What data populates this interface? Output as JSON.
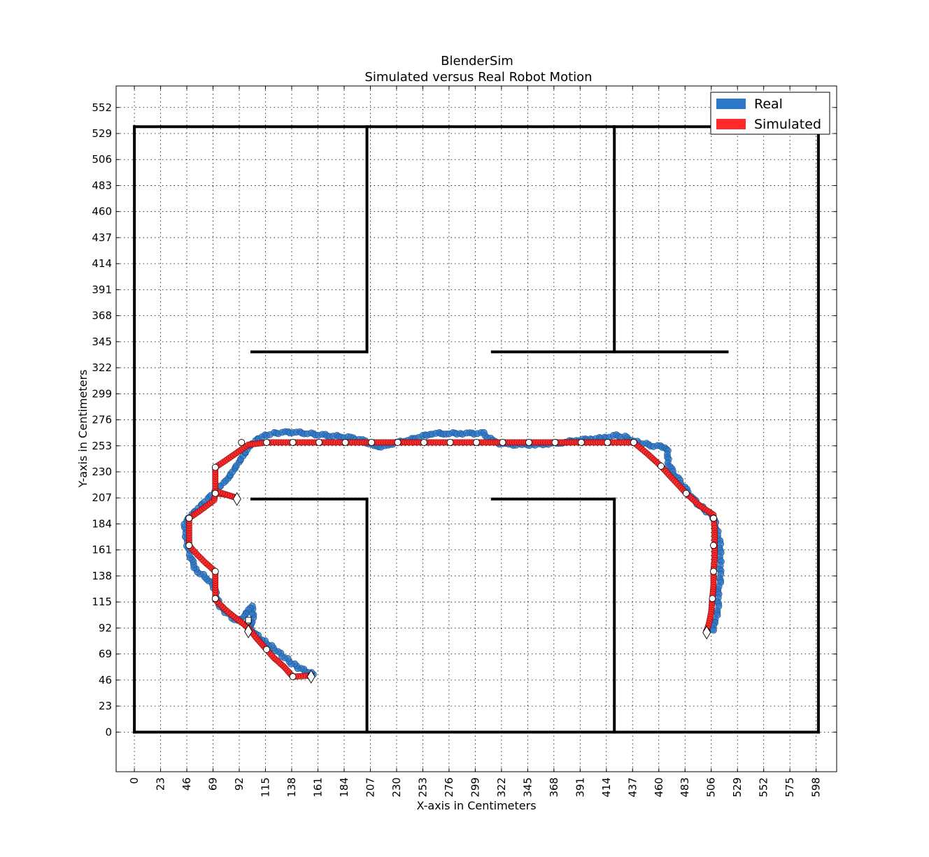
{
  "chart_data": {
    "type": "scatter",
    "title": "BlenderSim",
    "subtitle": "Simulated versus Real Robot Motion",
    "xlabel": "X-axis in Centimeters",
    "ylabel": "Y-axis in Centimeters",
    "xlim": [
      -16,
      616
    ],
    "ylim": [
      -35,
      571
    ],
    "xticks": [
      0,
      23,
      46,
      69,
      92,
      115,
      138,
      161,
      184,
      207,
      230,
      253,
      276,
      299,
      322,
      345,
      368,
      391,
      414,
      437,
      460,
      483,
      506,
      529,
      552,
      575,
      598
    ],
    "yticks": [
      0,
      23,
      46,
      69,
      92,
      115,
      138,
      161,
      184,
      207,
      230,
      253,
      276,
      299,
      322,
      345,
      368,
      391,
      414,
      437,
      460,
      483,
      506,
      529,
      552
    ],
    "grid": true,
    "legend_position": "top-right",
    "colors": {
      "real": "#2e78c8",
      "simulated": "#ff2a2a",
      "walls": "#000000"
    },
    "walls": [
      [
        [
          0,
          0
        ],
        [
          600,
          0
        ]
      ],
      [
        [
          0,
          0
        ],
        [
          0,
          535
        ]
      ],
      [
        [
          0,
          535
        ],
        [
          600,
          535
        ]
      ],
      [
        [
          600,
          0
        ],
        [
          600,
          535
        ]
      ],
      [
        [
          204,
          535
        ],
        [
          204,
          336
        ]
      ],
      [
        [
          103,
          336
        ],
        [
          204,
          336
        ]
      ],
      [
        [
          421,
          535
        ],
        [
          421,
          336
        ]
      ],
      [
        [
          314,
          336
        ],
        [
          520,
          336
        ]
      ],
      [
        [
          103,
          206
        ],
        [
          204,
          206
        ]
      ],
      [
        [
          204,
          206
        ],
        [
          204,
          0
        ]
      ],
      [
        [
          314,
          206
        ],
        [
          421,
          206
        ]
      ],
      [
        [
          421,
          206
        ],
        [
          421,
          0
        ]
      ]
    ],
    "series": [
      {
        "name": "Real",
        "points": [
          [
            157,
            51
          ],
          [
            150,
            54
          ],
          [
            144,
            57
          ],
          [
            138,
            61
          ],
          [
            132,
            66
          ],
          [
            126,
            71
          ],
          [
            120,
            76
          ],
          [
            114,
            80
          ],
          [
            108,
            85
          ],
          [
            104,
            88
          ],
          [
            100,
            92
          ],
          [
            104,
            98
          ],
          [
            104,
            106
          ],
          [
            104,
            112
          ],
          [
            100,
            108
          ],
          [
            96,
            102
          ],
          [
            90,
            98
          ],
          [
            84,
            103
          ],
          [
            78,
            108
          ],
          [
            74,
            113
          ],
          [
            72,
            120
          ],
          [
            70,
            128
          ],
          [
            64,
            136
          ],
          [
            58,
            140
          ],
          [
            54,
            144
          ],
          [
            50,
            152
          ],
          [
            48,
            160
          ],
          [
            46,
            168
          ],
          [
            45,
            176
          ],
          [
            44,
            184
          ],
          [
            48,
            190
          ],
          [
            54,
            196
          ],
          [
            60,
            202
          ],
          [
            66,
            208
          ],
          [
            70,
            212
          ],
          [
            74,
            216
          ],
          [
            78,
            220
          ],
          [
            82,
            224
          ],
          [
            86,
            230
          ],
          [
            90,
            236
          ],
          [
            94,
            242
          ],
          [
            98,
            248
          ],
          [
            102,
            254
          ],
          [
            108,
            259
          ],
          [
            114,
            262
          ],
          [
            122,
            264
          ],
          [
            132,
            265
          ],
          [
            142,
            265
          ],
          [
            152,
            264
          ],
          [
            162,
            263
          ],
          [
            172,
            262
          ],
          [
            182,
            261
          ],
          [
            192,
            260
          ],
          [
            202,
            257
          ],
          [
            212,
            252
          ],
          [
            222,
            253
          ],
          [
            230,
            256
          ],
          [
            240,
            258
          ],
          [
            250,
            261
          ],
          [
            262,
            264
          ],
          [
            274,
            264
          ],
          [
            286,
            264
          ],
          [
            296,
            264
          ],
          [
            306,
            264
          ],
          [
            316,
            256
          ],
          [
            328,
            254
          ],
          [
            340,
            254
          ],
          [
            352,
            254
          ],
          [
            364,
            255
          ],
          [
            376,
            256
          ],
          [
            388,
            258
          ],
          [
            400,
            259
          ],
          [
            412,
            260
          ],
          [
            422,
            262
          ],
          [
            430,
            261
          ],
          [
            438,
            257
          ],
          [
            446,
            255
          ],
          [
            456,
            253
          ],
          [
            466,
            252
          ],
          [
            468,
            246
          ],
          [
            468,
            238
          ],
          [
            472,
            230
          ],
          [
            478,
            222
          ],
          [
            484,
            214
          ],
          [
            490,
            206
          ],
          [
            496,
            200
          ],
          [
            502,
            195
          ],
          [
            508,
            190
          ],
          [
            510,
            182
          ],
          [
            512,
            174
          ],
          [
            514,
            166
          ],
          [
            514,
            158
          ],
          [
            514,
            150
          ],
          [
            514,
            142
          ],
          [
            514,
            134
          ],
          [
            512,
            124
          ],
          [
            512,
            116
          ],
          [
            512,
            108
          ],
          [
            510,
            100
          ],
          [
            508,
            94
          ],
          [
            508,
            90
          ]
        ]
      },
      {
        "name": "Simulated",
        "points": [
          [
            155,
            50
          ],
          [
            139,
            49
          ],
          [
            131,
            58
          ],
          [
            122,
            66
          ],
          [
            116,
            73
          ],
          [
            108,
            82
          ],
          [
            100,
            92
          ],
          [
            94,
            97
          ],
          [
            86,
            103
          ],
          [
            79,
            109
          ],
          [
            71,
            117
          ],
          [
            71,
            130
          ],
          [
            71,
            142
          ],
          [
            62,
            150
          ],
          [
            54,
            158
          ],
          [
            48,
            165
          ],
          [
            48,
            176
          ],
          [
            48,
            189
          ],
          [
            58,
            196
          ],
          [
            70,
            205
          ],
          [
            71,
            211
          ],
          [
            80,
            210
          ],
          [
            90,
            207
          ],
          [
            71,
            213
          ],
          [
            71,
            224
          ],
          [
            71,
            234
          ],
          [
            80,
            240
          ],
          [
            90,
            247
          ],
          [
            100,
            254
          ],
          [
            116,
            256
          ],
          [
            139,
            256
          ],
          [
            162,
            256
          ],
          [
            185,
            256
          ],
          [
            208,
            256
          ],
          [
            231,
            256
          ],
          [
            254,
            256
          ],
          [
            277,
            256
          ],
          [
            300,
            256
          ],
          [
            323,
            256
          ],
          [
            346,
            256
          ],
          [
            369,
            256
          ],
          [
            392,
            256
          ],
          [
            415,
            256
          ],
          [
            438,
            256
          ],
          [
            450,
            246
          ],
          [
            462,
            235
          ],
          [
            472,
            224
          ],
          [
            484,
            211
          ],
          [
            496,
            200
          ],
          [
            508,
            192
          ],
          [
            509,
            178
          ],
          [
            509,
            166
          ],
          [
            509,
            154
          ],
          [
            508,
            142
          ],
          [
            508,
            130
          ],
          [
            507,
            118
          ],
          [
            506,
            106
          ],
          [
            504,
            96
          ],
          [
            502,
            90
          ]
        ]
      }
    ],
    "markers": {
      "circles": [
        [
          155,
          50
        ],
        [
          139,
          49
        ],
        [
          116,
          73
        ],
        [
          100,
          98
        ],
        [
          71,
          118
        ],
        [
          71,
          142
        ],
        [
          48,
          165
        ],
        [
          48,
          189
        ],
        [
          71,
          211
        ],
        [
          71,
          234
        ],
        [
          94,
          256
        ],
        [
          116,
          256
        ],
        [
          139,
          256
        ],
        [
          162,
          256
        ],
        [
          185,
          256
        ],
        [
          208,
          256
        ],
        [
          231,
          256
        ],
        [
          254,
          256
        ],
        [
          277,
          256
        ],
        [
          300,
          256
        ],
        [
          323,
          256
        ],
        [
          346,
          256
        ],
        [
          369,
          256
        ],
        [
          392,
          256
        ],
        [
          415,
          256
        ],
        [
          438,
          256
        ],
        [
          462,
          235
        ],
        [
          484,
          211
        ],
        [
          508,
          189
        ],
        [
          508,
          165
        ],
        [
          508,
          142
        ],
        [
          507,
          118
        ],
        [
          502,
          89
        ]
      ],
      "diamonds": [
        [
          155,
          49
        ],
        [
          100,
          89
        ],
        [
          90,
          206
        ],
        [
          502,
          88
        ]
      ],
      "squares": [
        [
          100,
          99
        ]
      ]
    }
  },
  "legend": {
    "items": [
      {
        "label": "Real",
        "color": "#2e78c8"
      },
      {
        "label": "Simulated",
        "color": "#ff2a2a"
      }
    ]
  }
}
